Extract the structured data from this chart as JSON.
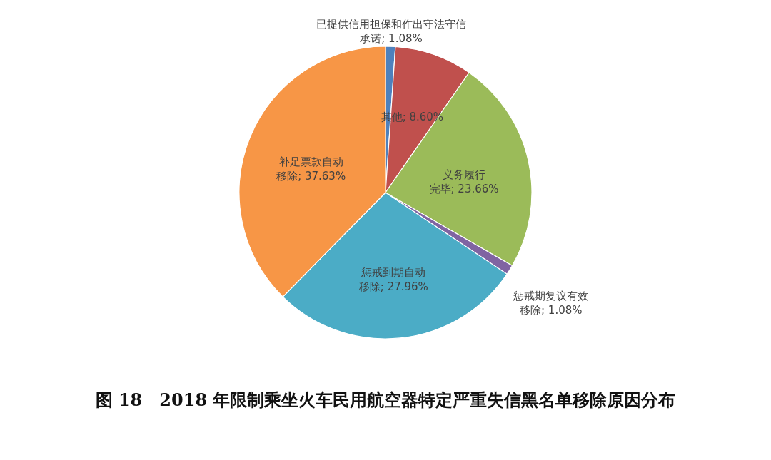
{
  "chart_data": {
    "type": "pie",
    "title": "图 18　2018 年限制乘坐火车民用航空器特定严重失信黑名单移除原因分布",
    "categories": [
      "已提供信用担保和作出守法守信承诺",
      "其他",
      "义务履行完毕",
      "惩戒期复议有效移除",
      "惩戒到期自动移除",
      "补足票款自动移除"
    ],
    "values": [
      1.08,
      8.6,
      23.66,
      1.08,
      27.96,
      37.63
    ],
    "value_labels": [
      "1.08%",
      "8.60%",
      "23.66%",
      "1.08%",
      "27.96%",
      "37.63%"
    ],
    "colors": [
      "#4f81bd",
      "#c0504d",
      "#9bbb59",
      "#8064a2",
      "#4bacc6",
      "#f79646"
    ]
  }
}
